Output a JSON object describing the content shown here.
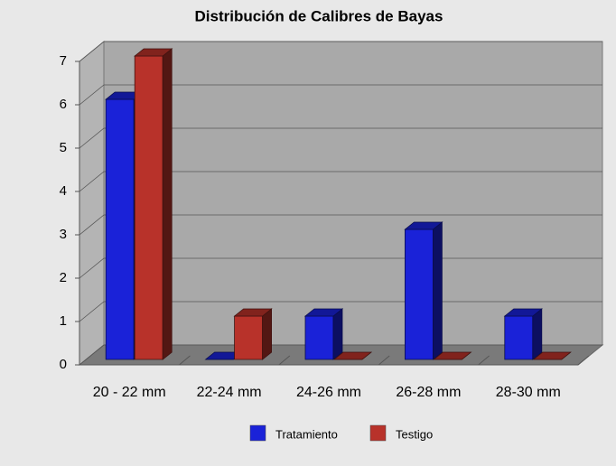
{
  "chart_data": {
    "type": "bar3d",
    "title": "Distribución de Calibres de Bayas",
    "categories": [
      "20 - 22 mm",
      "22-24 mm",
      "24-26 mm",
      "26-28 mm",
      "28-30 mm"
    ],
    "series": [
      {
        "name": "Tratamiento",
        "color": "#1a22d8",
        "values": [
          6,
          0,
          1,
          3,
          1
        ]
      },
      {
        "name": "Testigo",
        "color": "#b8322a",
        "values": [
          7,
          1,
          0,
          0,
          0
        ]
      }
    ],
    "ylim": [
      0,
      7
    ],
    "yticks": [
      0,
      1,
      2,
      3,
      4,
      5,
      6,
      7
    ],
    "grid": true,
    "legend": "bottom"
  }
}
